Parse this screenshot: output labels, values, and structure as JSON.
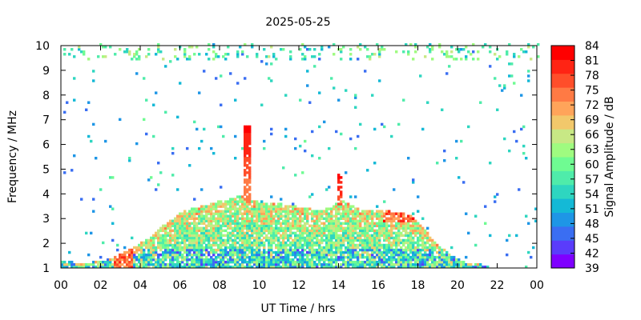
{
  "chart_data": {
    "type": "heatmap",
    "title": "2025-05-25",
    "xlabel": "UT Time / hrs",
    "ylabel": "Frequency / MHz",
    "colorbar_label": "Signal Amplitude / dB",
    "xlim": [
      0,
      24
    ],
    "ylim": [
      1,
      10
    ],
    "x_ticks": [
      "00",
      "02",
      "04",
      "06",
      "08",
      "10",
      "12",
      "14",
      "16",
      "18",
      "20",
      "22",
      "00"
    ],
    "y_ticks": [
      "1",
      "2",
      "3",
      "4",
      "5",
      "6",
      "7",
      "8",
      "9",
      "10"
    ],
    "colorbar_ticks": [
      "39",
      "42",
      "45",
      "48",
      "51",
      "54",
      "57",
      "60",
      "63",
      "66",
      "69",
      "72",
      "75",
      "78",
      "81",
      "84"
    ],
    "colorbar_range": [
      39,
      84
    ],
    "colorbar_colors": [
      "#7f00ff",
      "#5a3cfb",
      "#3a6ef2",
      "#1e96e6",
      "#14b9d6",
      "#2ed6c0",
      "#4fecaa",
      "#6ffb92",
      "#9ffb80",
      "#c8e885",
      "#f2c86b",
      "#ffa45a",
      "#ff7a44",
      "#ff4e2a",
      "#ff2414",
      "#ff0000"
    ],
    "grid": false,
    "activity_envelope": {
      "hours": [
        0,
        1,
        2,
        2.5,
        3,
        3.5,
        4,
        4.5,
        5,
        5.5,
        6,
        6.5,
        7,
        7.5,
        8,
        8.5,
        9,
        9.5,
        10,
        10.5,
        11,
        11.5,
        12,
        12.5,
        13,
        13.5,
        14,
        14.5,
        15,
        15.5,
        16,
        16.5,
        17,
        17.5,
        18,
        18.5,
        19,
        19.5,
        20,
        20.5,
        21,
        21.5
      ],
      "upper_mhz": [
        1.25,
        1.15,
        1.25,
        1.35,
        1.55,
        1.75,
        2.0,
        2.2,
        2.6,
        2.95,
        3.2,
        3.35,
        3.45,
        3.55,
        3.7,
        3.75,
        3.9,
        3.7,
        3.65,
        3.55,
        3.55,
        3.5,
        3.4,
        3.35,
        3.3,
        3.4,
        3.7,
        3.55,
        3.35,
        3.3,
        3.3,
        3.25,
        3.25,
        3.1,
        2.8,
        2.3,
        1.85,
        1.55,
        1.3,
        1.15,
        1.1,
        1.05
      ]
    },
    "features": [
      {
        "label": "spike",
        "hour": 9.3,
        "top_mhz": 6.7
      },
      {
        "label": "spike",
        "hour": 14.0,
        "top_mhz": 4.8
      }
    ]
  }
}
